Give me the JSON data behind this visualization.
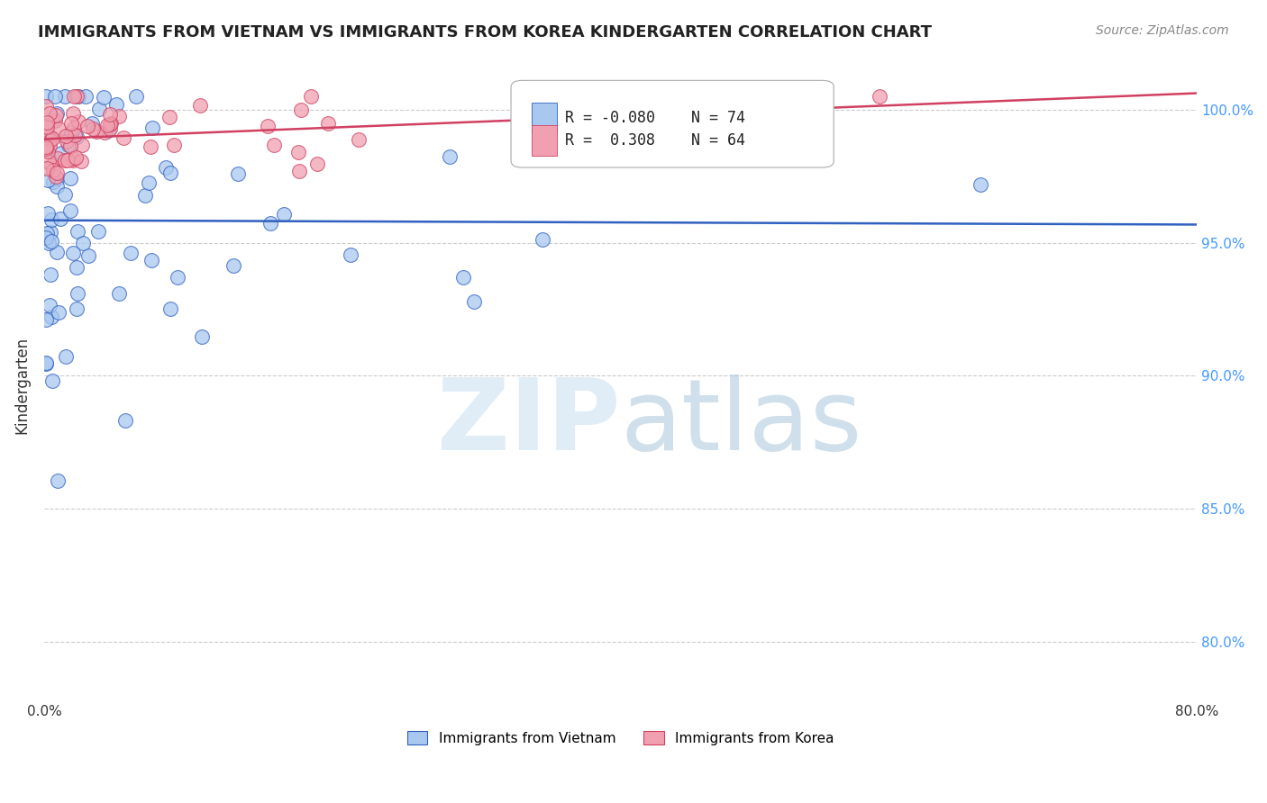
{
  "title": "IMMIGRANTS FROM VIETNAM VS IMMIGRANTS FROM KOREA KINDERGARTEN CORRELATION CHART",
  "source": "Source: ZipAtlas.com",
  "ylabel": "Kindergarten",
  "yticks": [
    "80.0%",
    "85.0%",
    "90.0%",
    "95.0%",
    "100.0%"
  ],
  "ytick_values": [
    0.8,
    0.85,
    0.9,
    0.95,
    1.0
  ],
  "xlim": [
    0.0,
    0.8
  ],
  "ylim": [
    0.778,
    1.015
  ],
  "legend_vietnam": "Immigrants from Vietnam",
  "legend_korea": "Immigrants from Korea",
  "R_vietnam": "-0.080",
  "N_vietnam": "74",
  "R_korea": "0.308",
  "N_korea": "64",
  "color_vietnam": "#a8c8f0",
  "color_korea": "#f0a0b0",
  "line_color_vietnam": "#3060c0",
  "line_color_korea": "#d04060",
  "grid_color": "#cccccc",
  "watermark_zip_color": "#cce0f0",
  "watermark_atlas_color": "#b0cce0"
}
